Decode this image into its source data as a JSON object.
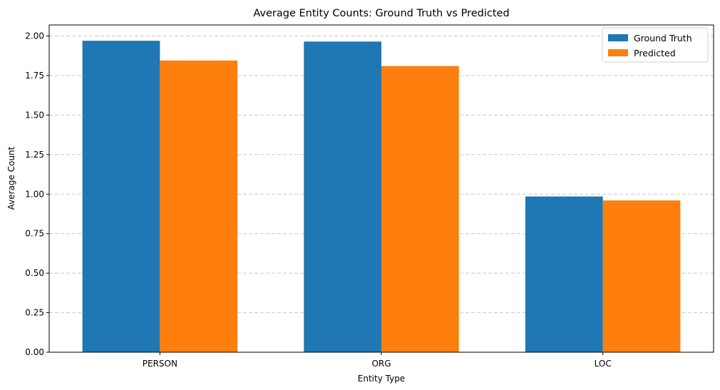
{
  "chart_data": {
    "type": "bar",
    "title": "Average Entity Counts: Ground Truth vs Predicted",
    "xlabel": "Entity Type",
    "ylabel": "Average Count",
    "categories": [
      "PERSON",
      "ORG",
      "LOC"
    ],
    "series": [
      {
        "name": "Ground Truth",
        "values": [
          1.97,
          1.965,
          0.985
        ],
        "color": "#1f77b4"
      },
      {
        "name": "Predicted",
        "values": [
          1.845,
          1.81,
          0.96
        ],
        "color": "#ff7f0e"
      }
    ],
    "ylim": [
      0,
      2.07
    ],
    "yticks": [
      "0.00",
      "0.25",
      "0.50",
      "0.75",
      "1.00",
      "1.25",
      "1.50",
      "1.75",
      "2.00"
    ],
    "grid": "y-dashed",
    "legend_position": "top-right"
  }
}
